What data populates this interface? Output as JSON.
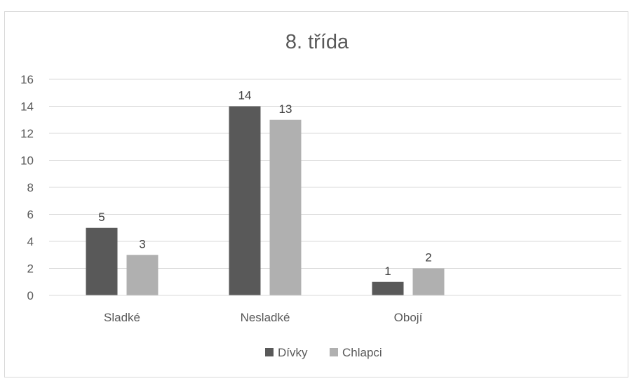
{
  "chart_data": {
    "type": "bar",
    "title": "8. třída",
    "categories": [
      "Sladké",
      "Nesladké",
      "Obojí"
    ],
    "series": [
      {
        "name": "Dívky",
        "values": [
          5,
          14,
          1
        ],
        "color": "#595959"
      },
      {
        "name": "Chlapci",
        "values": [
          3,
          13,
          2
        ],
        "color": "#b0b0b0"
      }
    ],
    "ylim": [
      0,
      16
    ],
    "yticks": [
      0,
      2,
      4,
      6,
      8,
      10,
      12,
      14,
      16
    ],
    "grid": true,
    "legend_position": "bottom",
    "data_labels": true
  }
}
